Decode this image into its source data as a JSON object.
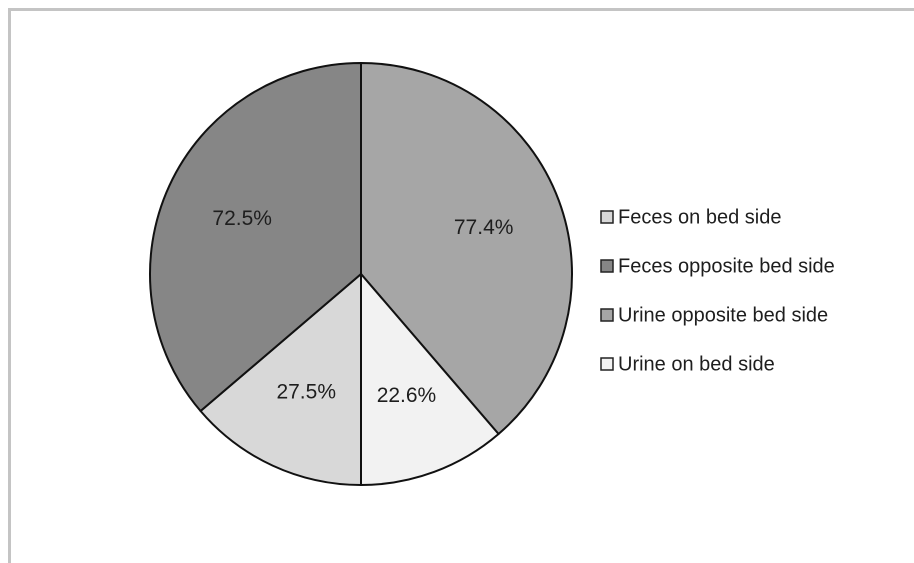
{
  "chart_data": {
    "type": "pie",
    "legend_position": "right",
    "series": [
      {
        "slices": [
          {
            "label": "Feces on bed side",
            "value": 27.5,
            "value_label": "27.5%",
            "color": "#d8d8d8"
          },
          {
            "label": "Feces opposite bed side",
            "value": 72.5,
            "value_label": "72.5%",
            "color": "#868686"
          }
        ]
      },
      {
        "slices": [
          {
            "label": "Urine opposite bed side",
            "value": 77.4,
            "value_label": "77.4%",
            "color": "#a6a6a6"
          },
          {
            "label": "Urine on bed side",
            "value": 22.6,
            "value_label": "22.6%",
            "color": "#f2f2f2"
          }
        ]
      }
    ],
    "legend": [
      {
        "label": "Feces on bed side",
        "color": "#d8d8d8"
      },
      {
        "label": "Feces opposite bed side",
        "color": "#868686"
      },
      {
        "label": "Urine opposite bed side",
        "color": "#a6a6a6"
      },
      {
        "label": "Urine on bed side",
        "color": "#f2f2f2"
      }
    ]
  }
}
